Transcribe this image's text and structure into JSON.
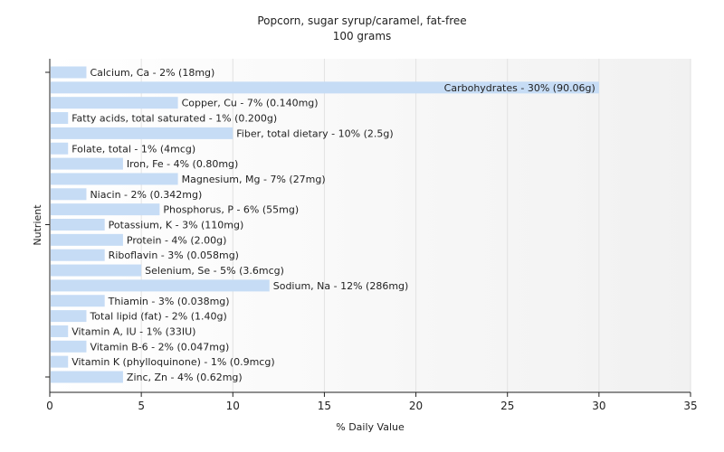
{
  "chart_data": {
    "type": "bar",
    "orientation": "horizontal",
    "title": "Popcorn, sugar syrup/caramel, fat-free",
    "subtitle": "100 grams",
    "xlabel": "% Daily Value",
    "ylabel": "Nutrient",
    "xlim": [
      0,
      35
    ],
    "xticks": [
      0,
      5,
      10,
      15,
      20,
      25,
      30,
      35
    ],
    "grid": true,
    "bar_color": "#c6dcf5",
    "categories": [
      "Calcium, Ca",
      "Carbohydrates",
      "Copper, Cu",
      "Fatty acids, total saturated",
      "Fiber, total dietary",
      "Folate, total",
      "Iron, Fe",
      "Magnesium, Mg",
      "Niacin",
      "Phosphorus, P",
      "Potassium, K",
      "Protein",
      "Riboflavin",
      "Selenium, Se",
      "Sodium, Na",
      "Thiamin",
      "Total lipid (fat)",
      "Vitamin A, IU",
      "Vitamin B-6",
      "Vitamin K (phylloquinone)",
      "Zinc, Zn"
    ],
    "values": [
      2,
      30,
      7,
      1,
      10,
      1,
      4,
      7,
      2,
      6,
      3,
      4,
      3,
      5,
      12,
      3,
      2,
      1,
      2,
      1,
      4
    ],
    "labels": [
      "Calcium, Ca - 2% (18mg)",
      "Carbohydrates - 30% (90.06g)",
      "Copper, Cu - 7% (0.140mg)",
      "Fatty acids, total saturated - 1% (0.200g)",
      "Fiber, total dietary - 10% (2.5g)",
      "Folate, total - 1% (4mcg)",
      "Iron, Fe - 4% (0.80mg)",
      "Magnesium, Mg - 7% (27mg)",
      "Niacin - 2% (0.342mg)",
      "Phosphorus, P - 6% (55mg)",
      "Potassium, K - 3% (110mg)",
      "Protein - 4% (2.00g)",
      "Riboflavin - 3% (0.058mg)",
      "Selenium, Se - 5% (3.6mcg)",
      "Sodium, Na - 12% (286mg)",
      "Thiamin - 3% (0.038mg)",
      "Total lipid (fat) - 2% (1.40g)",
      "Vitamin A, IU - 1% (33IU)",
      "Vitamin B-6 - 2% (0.047mg)",
      "Vitamin K (phylloquinone) - 1% (0.9mcg)",
      "Zinc, Zn - 4% (0.62mg)"
    ]
  }
}
